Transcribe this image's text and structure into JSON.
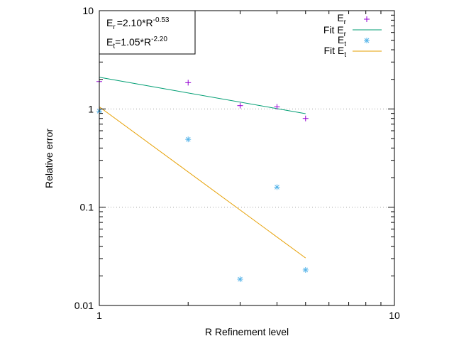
{
  "chart_data": {
    "type": "scatter",
    "xlabel": "R Refinement level",
    "ylabel": "Relative error",
    "xscale": "log",
    "yscale": "log",
    "xlim": [
      1,
      10
    ],
    "ylim": [
      0.01,
      10
    ],
    "x_ticks": [
      {
        "value": 1,
        "label": "1"
      },
      {
        "value": 10,
        "label": "10"
      }
    ],
    "y_ticks": [
      {
        "value": 0.01,
        "label": "0.01"
      },
      {
        "value": 0.1,
        "label": "0.1"
      },
      {
        "value": 1,
        "label": "1"
      },
      {
        "value": 10,
        "label": "10"
      }
    ],
    "grid": "horizontal dotted at y = 0.1 and y = 1",
    "legend_position": "top-right",
    "annotation": {
      "line1_main": "E",
      "line1_sub": "r",
      "line1_mid": "=2.10*R",
      "line1_sup": "-0.53",
      "line2_main": "E",
      "line2_sub": "t",
      "line2_mid": "=1.05*R",
      "line2_sup": "-2.20"
    },
    "series": [
      {
        "name": "E",
        "name_sub": "r",
        "kind": "points",
        "marker": "plus",
        "color": "#9400d3",
        "x": [
          1,
          2,
          3,
          4,
          5
        ],
        "y": [
          1.9,
          1.85,
          1.08,
          1.05,
          0.8
        ]
      },
      {
        "name": "Fit E",
        "name_sub": "r",
        "kind": "line",
        "color": "#009e73",
        "coef": 2.1,
        "exponent": -0.53,
        "x": [
          1,
          5
        ]
      },
      {
        "name": "E",
        "name_sub": "t",
        "kind": "points",
        "marker": "asterisk",
        "color": "#56b4e9",
        "x": [
          1,
          2,
          3,
          4,
          5
        ],
        "y": [
          0.95,
          0.49,
          0.0185,
          0.16,
          0.023
        ]
      },
      {
        "name": "Fit E",
        "name_sub": "t",
        "kind": "line",
        "color": "#e69f00",
        "coef": 1.05,
        "exponent": -2.2,
        "x": [
          1,
          5
        ]
      }
    ]
  }
}
